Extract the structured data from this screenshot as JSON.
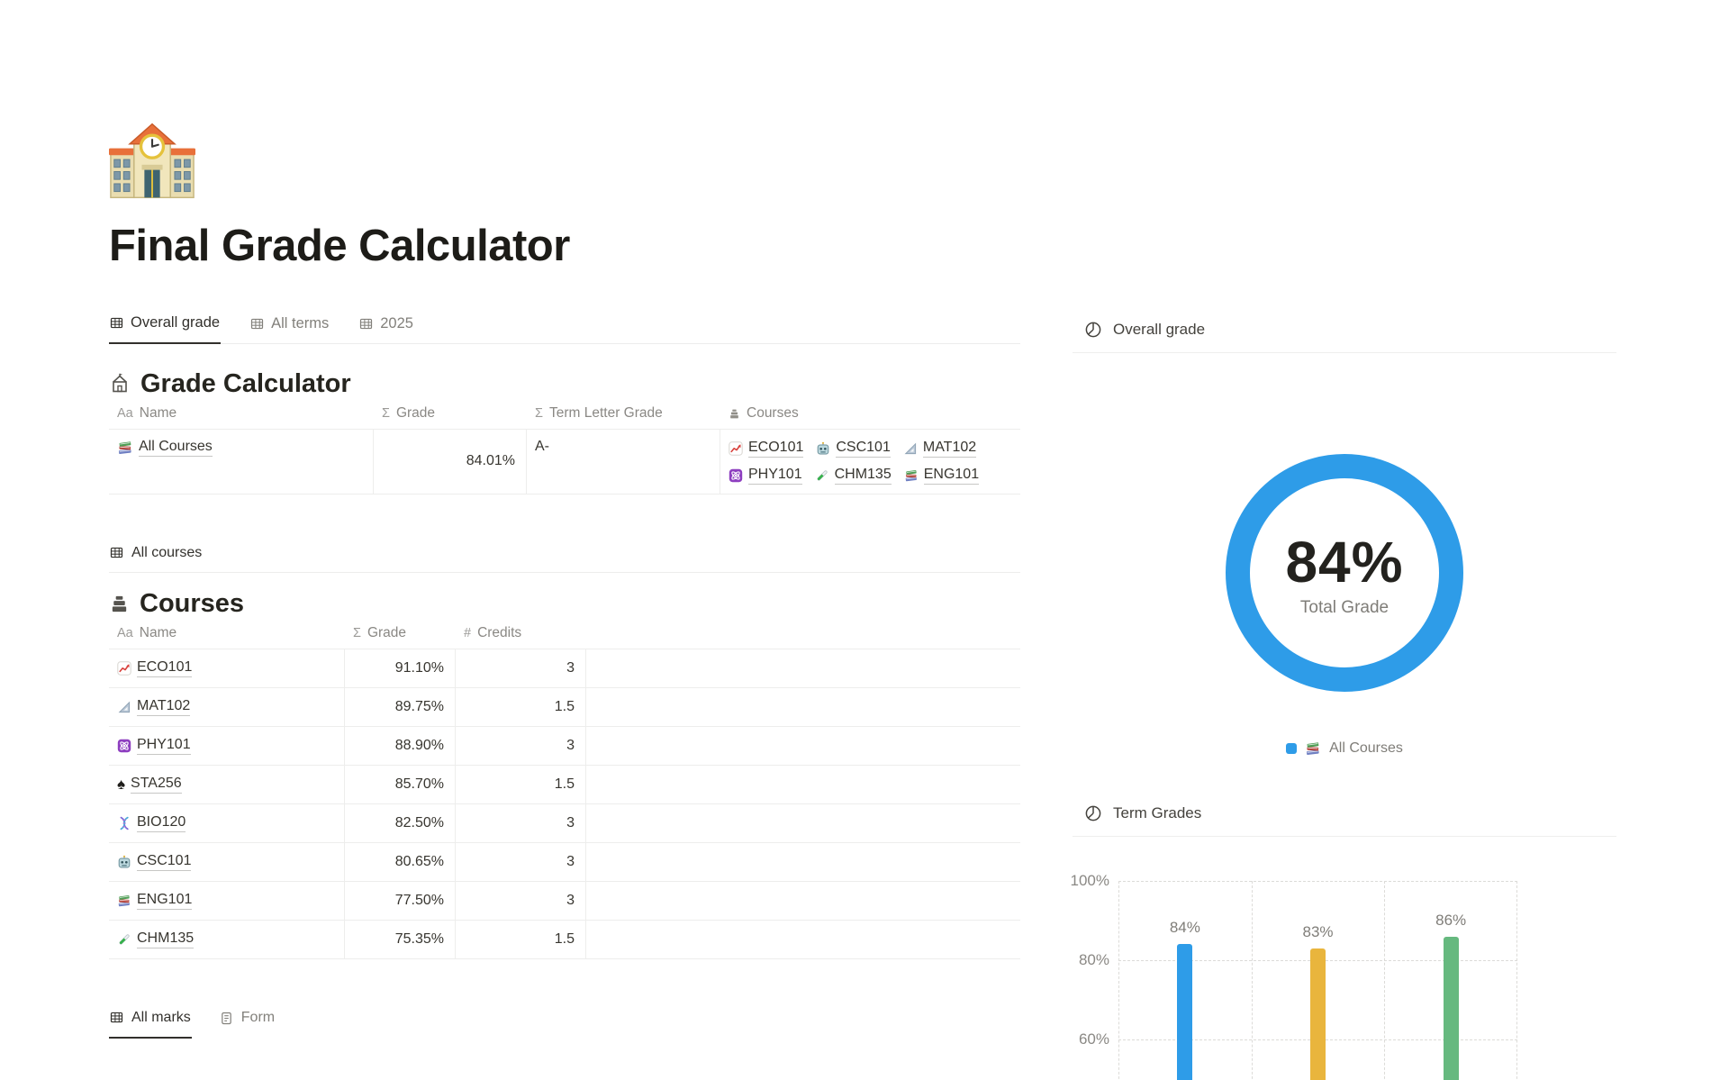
{
  "page": {
    "icon": "school-building",
    "title": "Final Grade Calculator"
  },
  "top_tabs": [
    {
      "label": "Overall grade",
      "icon": "table-icon",
      "active": true
    },
    {
      "label": "All terms",
      "icon": "table-icon",
      "active": false
    },
    {
      "label": "2025",
      "icon": "table-icon",
      "active": false
    }
  ],
  "grade_calculator": {
    "heading": "Grade Calculator",
    "columns": [
      {
        "icon": "Aa",
        "label": "Name"
      },
      {
        "icon": "Σ",
        "label": "Grade"
      },
      {
        "icon": "Σ",
        "label": "Term Letter Grade"
      },
      {
        "icon": "relation-stack-icon",
        "label": "Courses"
      }
    ],
    "row": {
      "name": "All Courses",
      "name_icon": "books-icon",
      "grade": "84.01%",
      "letter": "A-",
      "courses": [
        {
          "label": "ECO101",
          "icon": "chart-increasing-icon"
        },
        {
          "label": "CSC101",
          "icon": "robot-icon"
        },
        {
          "label": "MAT102",
          "icon": "triangular-ruler-icon"
        },
        {
          "label": "PHY101",
          "icon": "atom-icon"
        },
        {
          "label": "CHM135",
          "icon": "test-tube-icon"
        },
        {
          "label": "ENG101",
          "icon": "books-icon"
        }
      ]
    }
  },
  "all_courses_view": {
    "label": "All courses",
    "icon": "table-icon"
  },
  "courses": {
    "heading": "Courses",
    "columns": [
      {
        "icon": "Aa",
        "label": "Name"
      },
      {
        "icon": "Σ",
        "label": "Grade"
      },
      {
        "icon": "#",
        "label": "Credits"
      }
    ],
    "rows": [
      {
        "name": "ECO101",
        "icon": "chart-increasing-icon",
        "grade": "91.10%",
        "credits": "3"
      },
      {
        "name": "MAT102",
        "icon": "triangular-ruler-icon",
        "grade": "89.75%",
        "credits": "1.5"
      },
      {
        "name": "PHY101",
        "icon": "atom-icon",
        "grade": "88.90%",
        "credits": "3"
      },
      {
        "name": "STA256",
        "icon": "spade-icon",
        "grade": "85.70%",
        "credits": "1.5"
      },
      {
        "name": "BIO120",
        "icon": "dna-icon",
        "grade": "82.50%",
        "credits": "3"
      },
      {
        "name": "CSC101",
        "icon": "robot-icon",
        "grade": "80.65%",
        "credits": "3"
      },
      {
        "name": "ENG101",
        "icon": "books-icon",
        "grade": "77.50%",
        "credits": "3"
      },
      {
        "name": "CHM135",
        "icon": "test-tube-icon",
        "grade": "75.35%",
        "credits": "1.5"
      }
    ]
  },
  "bottom_tabs": [
    {
      "label": "All marks",
      "icon": "table-icon",
      "active": true
    },
    {
      "label": "Form",
      "icon": "form-icon",
      "active": false
    }
  ],
  "right_panel": {
    "overall_header": {
      "label": "Overall grade",
      "icon": "pie-chart-icon"
    },
    "term_header": {
      "label": "Term Grades",
      "icon": "pie-chart-icon"
    }
  },
  "chart_data": [
    {
      "type": "pie",
      "subtype": "donut",
      "title": "Overall grade",
      "center_value": "84%",
      "center_label": "Total Grade",
      "series": [
        {
          "name": "All Courses",
          "value": 84,
          "color": "#2e9ce8"
        }
      ],
      "legend_position": "bottom"
    },
    {
      "type": "bar",
      "title": "Term Grades",
      "categories": [
        "",
        "",
        ""
      ],
      "values": [
        84,
        83,
        86
      ],
      "bar_labels": [
        "84%",
        "83%",
        "86%"
      ],
      "colors": [
        "#2e9ce8",
        "#e9b53d",
        "#66b97f"
      ],
      "y_ticks": [
        "100%",
        "80%",
        "60%"
      ],
      "y_tick_values": [
        100,
        80,
        60
      ],
      "ylim_visible": [
        60,
        100
      ],
      "grid": "dashed",
      "xlabel": "",
      "ylabel": ""
    }
  ]
}
